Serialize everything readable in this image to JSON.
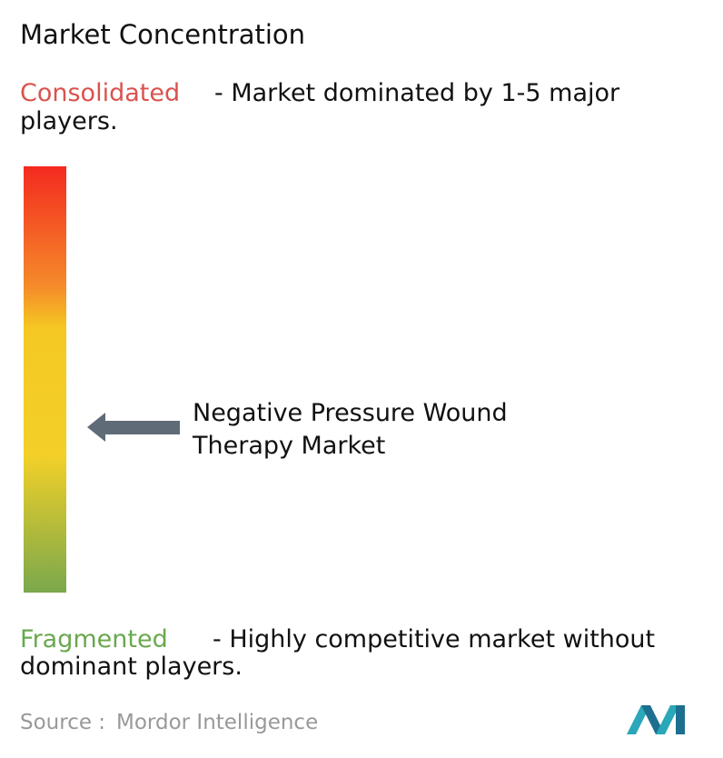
{
  "title": "Market Concentration",
  "consolidated": {
    "label": "Consolidated",
    "description": [
      "- Market dominated by 1-5 major",
      "players."
    ]
  },
  "marker": {
    "label": [
      "Negative Pressure Wound",
      "Therapy Market"
    ]
  },
  "fragmented": {
    "label": "Fragmented",
    "description": [
      "- Highly competitive market without",
      "dominant players."
    ]
  },
  "source": {
    "prefix": "Source :",
    "name": "Mordor Intelligence"
  }
}
